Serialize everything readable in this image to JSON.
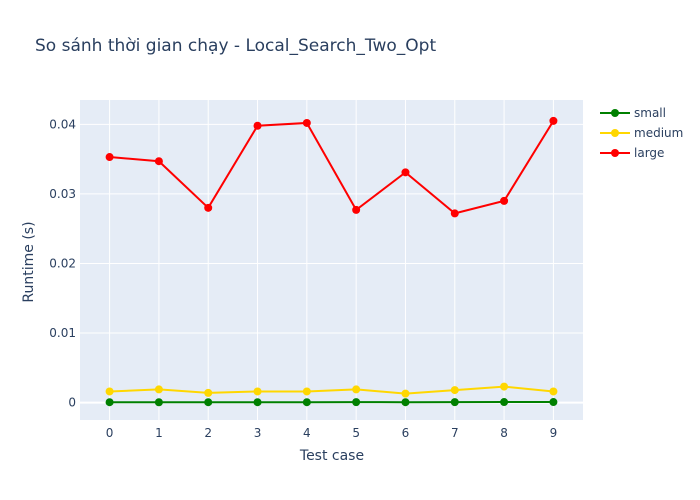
{
  "chart_data": {
    "type": "line",
    "title": "So sánh thời gian chạy - Local_Search_Two_Opt",
    "xlabel": "Test case",
    "ylabel": "Runtime (s)",
    "x": [
      0,
      1,
      2,
      3,
      4,
      5,
      6,
      7,
      8,
      9
    ],
    "xlim": [
      -0.6,
      9.6
    ],
    "ylim": [
      -0.0025,
      0.0435
    ],
    "yticks": [
      0,
      0.01,
      0.02,
      0.03,
      0.04
    ],
    "ytick_labels": [
      "0",
      "0.01",
      "0.02",
      "0.03",
      "0.04"
    ],
    "grid": true,
    "legend_position": "top-right",
    "series": [
      {
        "name": "small",
        "color": "#008000",
        "values": [
          6e-05,
          5e-05,
          6e-05,
          6e-05,
          6e-05,
          7e-05,
          6e-05,
          7e-05,
          8e-05,
          8e-05
        ]
      },
      {
        "name": "medium",
        "color": "#FFD700",
        "values": [
          0.0016,
          0.0019,
          0.0014,
          0.0016,
          0.0016,
          0.0019,
          0.0013,
          0.0018,
          0.0023,
          0.0016
        ]
      },
      {
        "name": "large",
        "color": "#FF0000",
        "values": [
          0.0353,
          0.0347,
          0.028,
          0.0398,
          0.0402,
          0.0277,
          0.0331,
          0.0272,
          0.029,
          0.0405
        ]
      }
    ]
  }
}
